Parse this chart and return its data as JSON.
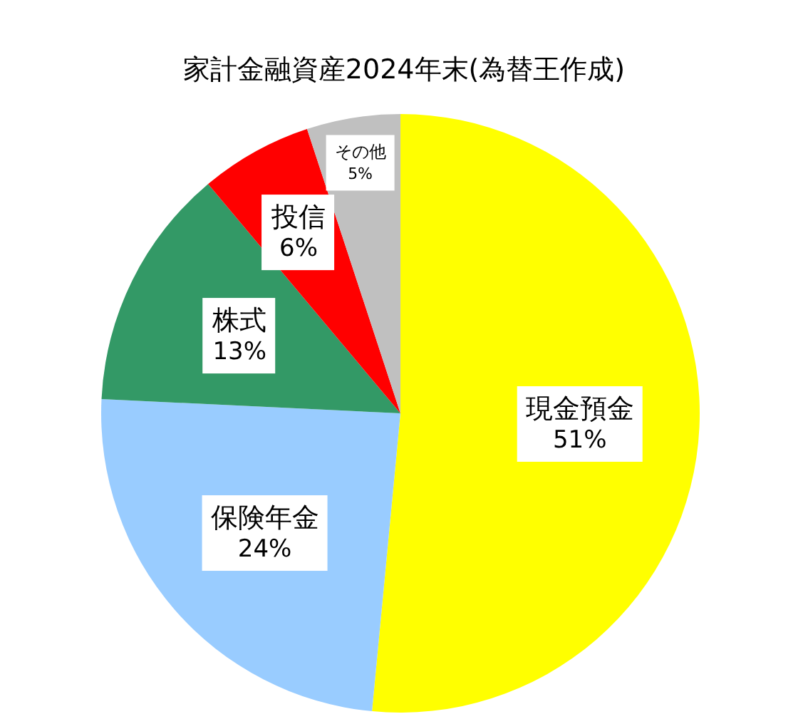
{
  "chart_data": {
    "type": "pie",
    "title": "家計金融資産2024年末(為替王作成)",
    "categories": [
      "現金預金",
      "保険年金",
      "株式",
      "投信",
      "その他"
    ],
    "values": [
      51,
      24,
      13,
      6,
      5
    ],
    "colors": [
      "#ffff00",
      "#99ccff",
      "#339966",
      "#ff0000",
      "#c0c0c0"
    ],
    "value_labels": [
      "51%",
      "24%",
      "13%",
      "6%",
      "5%"
    ]
  }
}
